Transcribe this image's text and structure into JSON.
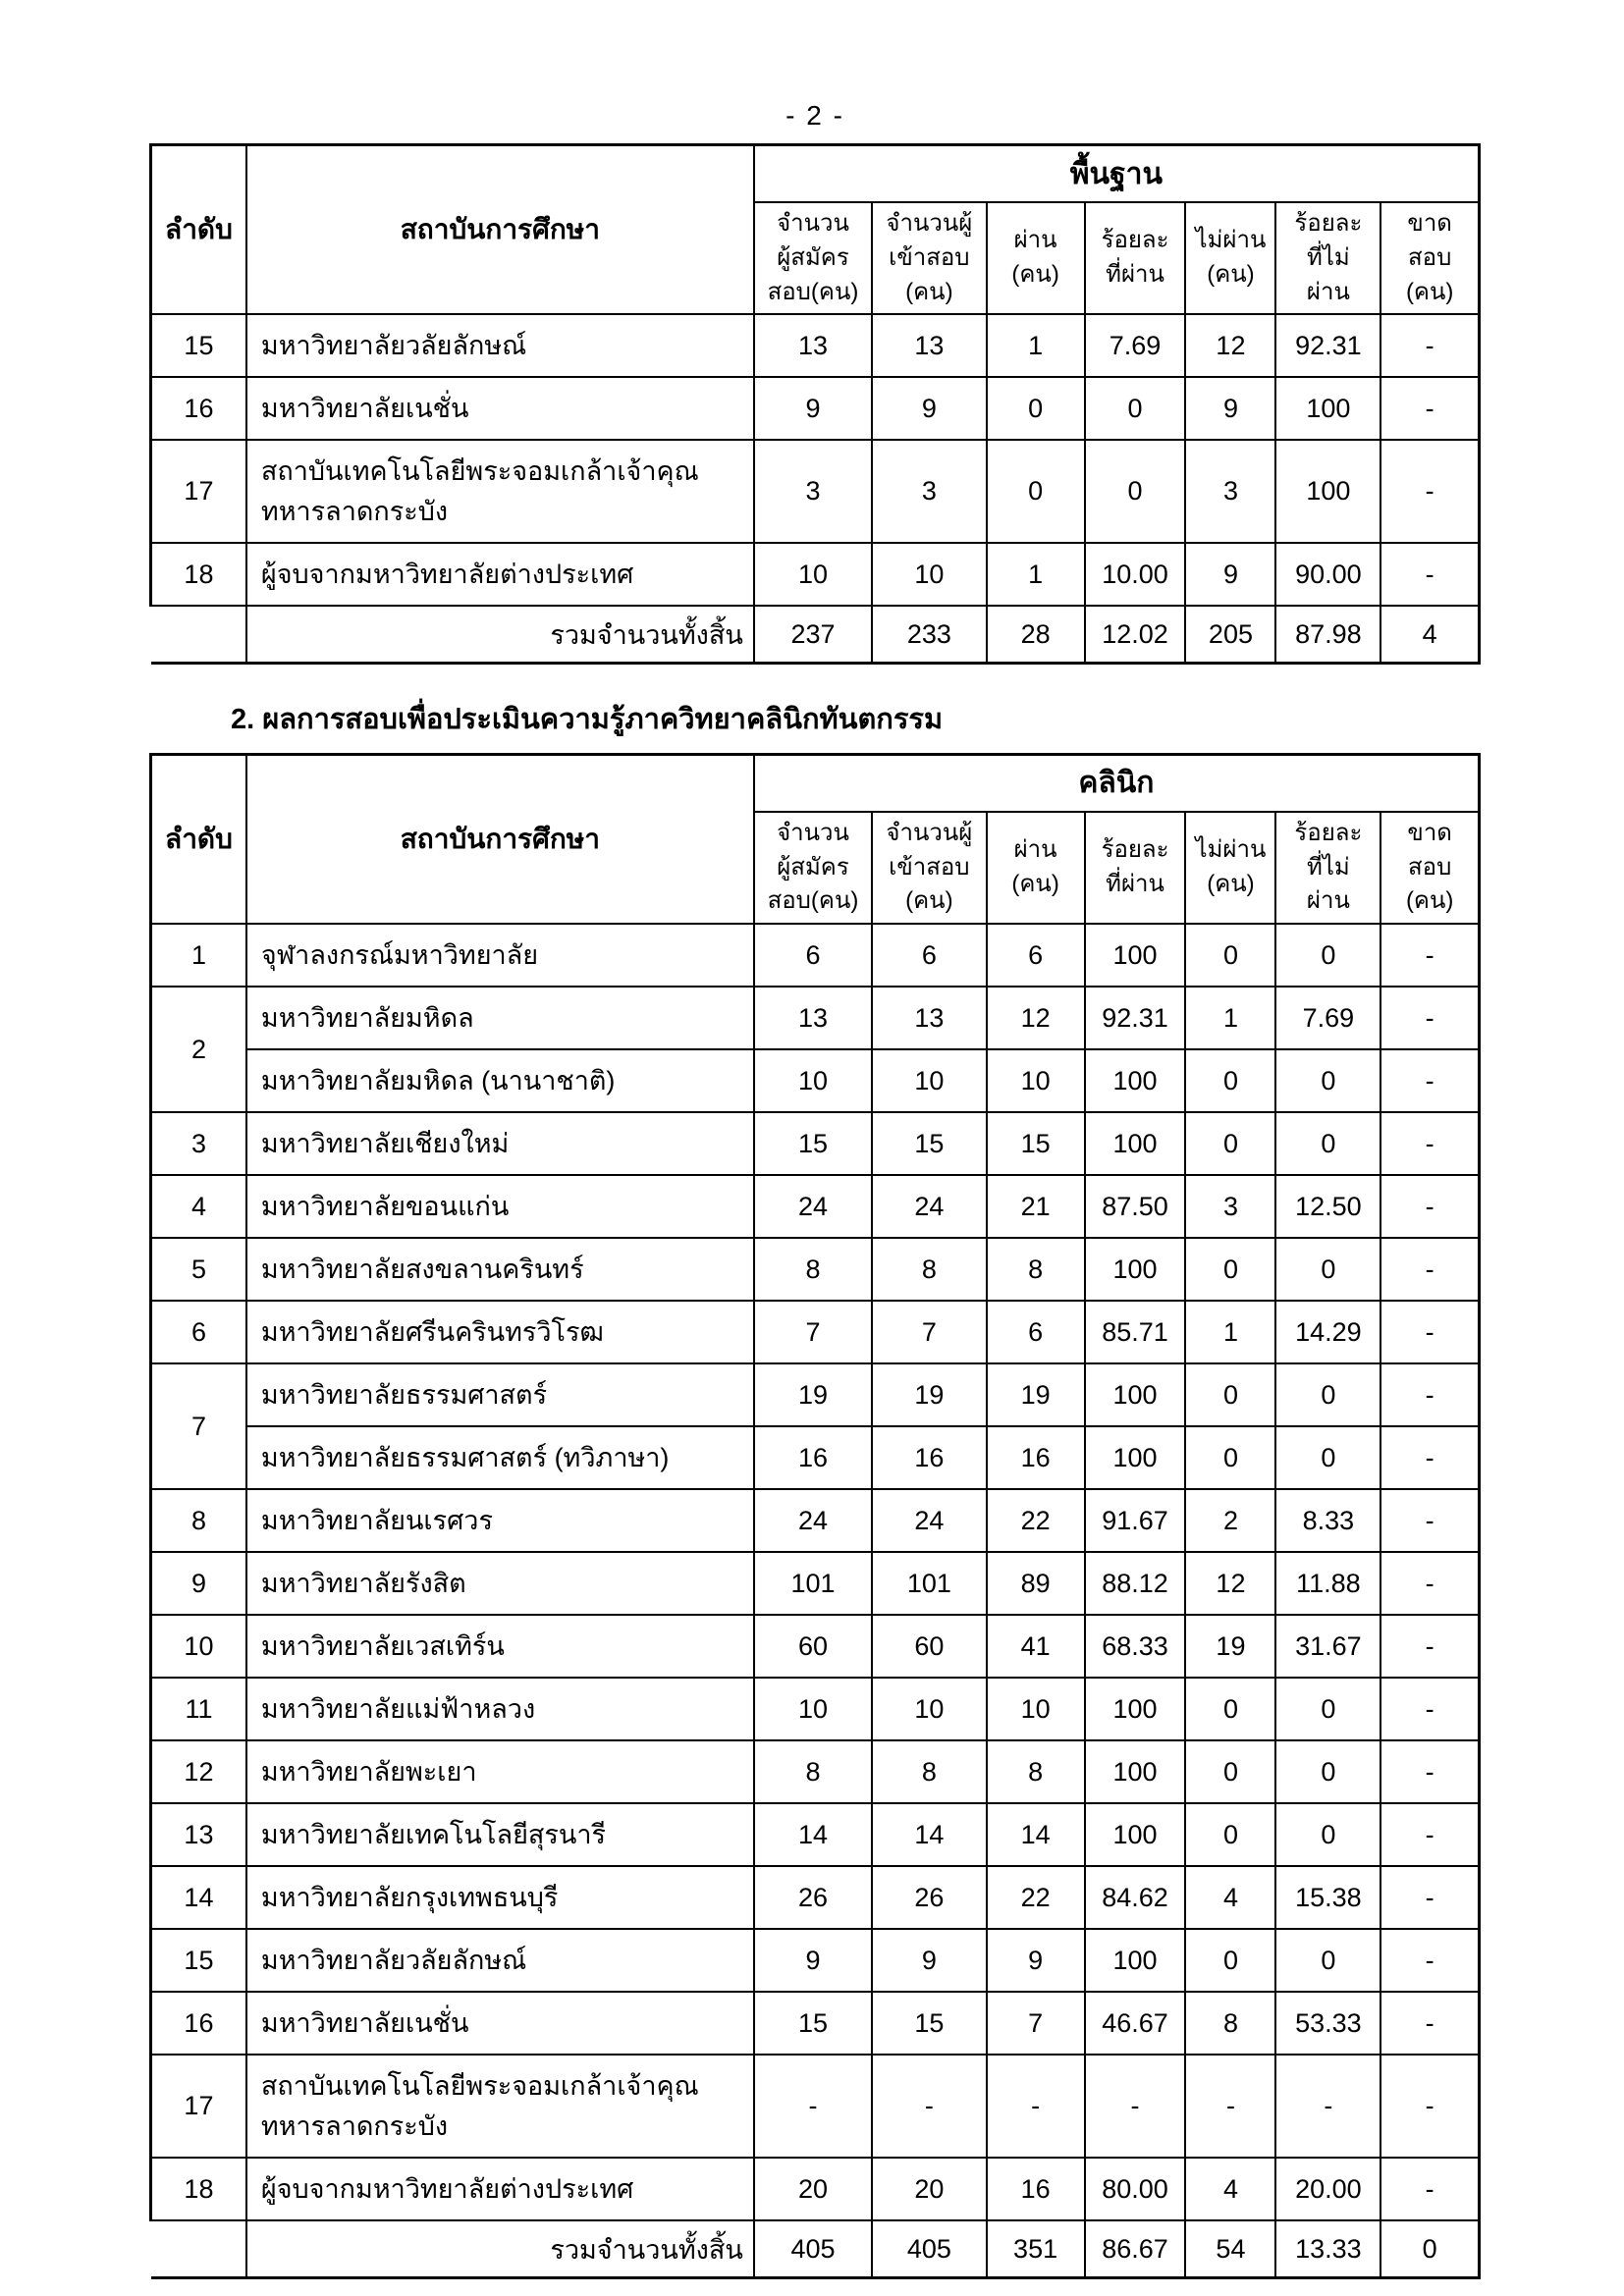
{
  "page_number": "- 2 -",
  "section_heading": "2. ผลการสอบเพื่อประเมินความรู้ภาควิทยาคลินิกทันตกรรม",
  "headers": {
    "no": "ลำดับ",
    "institution": "สถาบันการศึกษา",
    "sub": [
      "จำนวน\nผู้สมัคร\nสอบ(คน)",
      "จำนวนผู้\nเข้าสอบ\n(คน)",
      "ผ่าน\n(คน)",
      "ร้อยละ\nที่ผ่าน",
      "ไม่ผ่าน\n(คน)",
      "ร้อยละ\nที่ไม่\nผ่าน",
      "ขาด\nสอบ\n(คน)"
    ],
    "total_label": "รวมจำนวนทั้งสิ้น"
  },
  "tables": [
    {
      "group_label": "พื้นฐาน",
      "rows": [
        {
          "no": "15",
          "institution": "มหาวิทยาลัยวลัยลักษณ์",
          "values": [
            "13",
            "13",
            "1",
            "7.69",
            "12",
            "92.31",
            "-"
          ]
        },
        {
          "no": "16",
          "institution": "มหาวิทยาลัยเนชั่น",
          "values": [
            "9",
            "9",
            "0",
            "0",
            "9",
            "100",
            "-"
          ]
        },
        {
          "no": "17",
          "institution": "สถาบันเทคโนโลยีพระจอมเกล้าเจ้าคุณ\nทหารลาดกระบัง",
          "values": [
            "3",
            "3",
            "0",
            "0",
            "3",
            "100",
            "-"
          ]
        },
        {
          "no": "18",
          "institution": "ผู้จบจากมหาวิทยาลัยต่างประเทศ",
          "values": [
            "10",
            "10",
            "1",
            "10.00",
            "9",
            "90.00",
            "-"
          ]
        }
      ],
      "total": [
        "237",
        "233",
        "28",
        "12.02",
        "205",
        "87.98",
        "4"
      ]
    },
    {
      "group_label": "คลินิก",
      "rows": [
        {
          "no": "1",
          "institution": "จุฬาลงกรณ์มหาวิทยาลัย",
          "values": [
            "6",
            "6",
            "6",
            "100",
            "0",
            "0",
            "-"
          ]
        },
        {
          "no": "2",
          "rowspan": 2,
          "institution": "มหาวิทยาลัยมหิดล",
          "values": [
            "13",
            "13",
            "12",
            "92.31",
            "1",
            "7.69",
            "-"
          ]
        },
        {
          "institution": "มหาวิทยาลัยมหิดล (นานาชาติ)",
          "values": [
            "10",
            "10",
            "10",
            "100",
            "0",
            "0",
            "-"
          ]
        },
        {
          "no": "3",
          "institution": "มหาวิทยาลัยเชียงใหม่",
          "values": [
            "15",
            "15",
            "15",
            "100",
            "0",
            "0",
            "-"
          ]
        },
        {
          "no": "4",
          "institution": "มหาวิทยาลัยขอนแก่น",
          "values": [
            "24",
            "24",
            "21",
            "87.50",
            "3",
            "12.50",
            "-"
          ]
        },
        {
          "no": "5",
          "institution": "มหาวิทยาลัยสงขลานครินทร์",
          "values": [
            "8",
            "8",
            "8",
            "100",
            "0",
            "0",
            "-"
          ]
        },
        {
          "no": "6",
          "institution": "มหาวิทยาลัยศรีนครินทรวิโรฒ",
          "values": [
            "7",
            "7",
            "6",
            "85.71",
            "1",
            "14.29",
            "-"
          ]
        },
        {
          "no": "7",
          "rowspan": 2,
          "institution": "มหาวิทยาลัยธรรมศาสตร์",
          "values": [
            "19",
            "19",
            "19",
            "100",
            "0",
            "0",
            "-"
          ]
        },
        {
          "institution": "มหาวิทยาลัยธรรมศาสตร์ (ทวิภาษา)",
          "values": [
            "16",
            "16",
            "16",
            "100",
            "0",
            "0",
            "-"
          ]
        },
        {
          "no": "8",
          "institution": "มหาวิทยาลัยนเรศวร",
          "values": [
            "24",
            "24",
            "22",
            "91.67",
            "2",
            "8.33",
            "-"
          ]
        },
        {
          "no": "9",
          "institution": "มหาวิทยาลัยรังสิต",
          "values": [
            "101",
            "101",
            "89",
            "88.12",
            "12",
            "11.88",
            "-"
          ]
        },
        {
          "no": "10",
          "institution": "มหาวิทยาลัยเวสเทิร์น",
          "values": [
            "60",
            "60",
            "41",
            "68.33",
            "19",
            "31.67",
            "-"
          ]
        },
        {
          "no": "11",
          "institution": "มหาวิทยาลัยแม่ฟ้าหลวง",
          "values": [
            "10",
            "10",
            "10",
            "100",
            "0",
            "0",
            "-"
          ]
        },
        {
          "no": "12",
          "institution": "มหาวิทยาลัยพะเยา",
          "values": [
            "8",
            "8",
            "8",
            "100",
            "0",
            "0",
            "-"
          ]
        },
        {
          "no": "13",
          "institution": "มหาวิทยาลัยเทคโนโลยีสุรนารี",
          "values": [
            "14",
            "14",
            "14",
            "100",
            "0",
            "0",
            "-"
          ]
        },
        {
          "no": "14",
          "institution": "มหาวิทยาลัยกรุงเทพธนบุรี",
          "values": [
            "26",
            "26",
            "22",
            "84.62",
            "4",
            "15.38",
            "-"
          ]
        },
        {
          "no": "15",
          "institution": "มหาวิทยาลัยวลัยลักษณ์",
          "values": [
            "9",
            "9",
            "9",
            "100",
            "0",
            "0",
            "-"
          ]
        },
        {
          "no": "16",
          "institution": "มหาวิทยาลัยเนชั่น",
          "values": [
            "15",
            "15",
            "7",
            "46.67",
            "8",
            "53.33",
            "-"
          ]
        },
        {
          "no": "17",
          "institution": "สถาบันเทคโนโลยีพระจอมเกล้าเจ้าคุณ\nทหารลาดกระบัง",
          "values": [
            "-",
            "-",
            "-",
            "-",
            "-",
            "-",
            "-"
          ]
        },
        {
          "no": "18",
          "institution": "ผู้จบจากมหาวิทยาลัยต่างประเทศ",
          "values": [
            "20",
            "20",
            "16",
            "80.00",
            "4",
            "20.00",
            "-"
          ]
        }
      ],
      "total": [
        "405",
        "405",
        "351",
        "86.67",
        "54",
        "13.33",
        "0"
      ]
    }
  ]
}
